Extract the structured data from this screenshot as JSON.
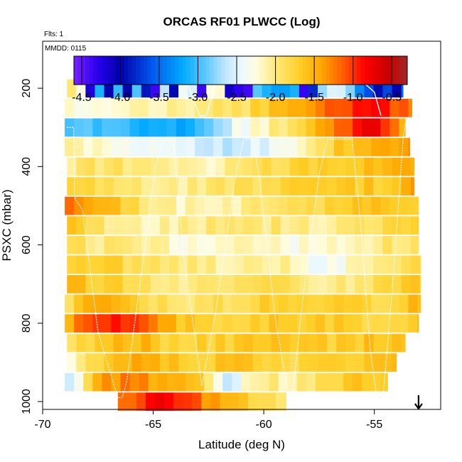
{
  "chart_data": {
    "type": "heatmap",
    "title": "ORCAS RF01 PLWCC (Log)",
    "note_flights": "Flts: 1",
    "note_date": "MMDD: 0115",
    "xlabel": "Latitude (deg N)",
    "ylabel": "PSXC (mbar)",
    "xlim": [
      -70,
      -52
    ],
    "ylim": [
      1020,
      80
    ],
    "x_ticks": [
      -70,
      -65,
      -60,
      -55
    ],
    "x_tick_labels": [
      "-70",
      "-65",
      "-60",
      "-55"
    ],
    "y_ticks": [
      200,
      400,
      600,
      800,
      1000
    ],
    "y_tick_labels": [
      "200",
      "400",
      "600",
      "800",
      "1000"
    ],
    "colorbar": {
      "range": [
        -4.6,
        -0.3
      ],
      "ticks": [
        -4.5,
        -4.0,
        -3.5,
        -3.0,
        -2.5,
        -2.0,
        -1.5,
        -1.0,
        -0.5
      ],
      "tick_labels": [
        "-4.5",
        "-4.0",
        "-3.5",
        "-3.0",
        "-2.5",
        "-2.0",
        "-1.5",
        "-1.0",
        "-0.5"
      ],
      "stops": [
        {
          "v": -4.6,
          "c": "#7b20ff"
        },
        {
          "v": -4.3,
          "c": "#2a00ee"
        },
        {
          "v": -4.0,
          "c": "#0000a8"
        },
        {
          "v": -3.6,
          "c": "#0055ee"
        },
        {
          "v": -3.2,
          "c": "#00aaff"
        },
        {
          "v": -2.9,
          "c": "#5cc8ff"
        },
        {
          "v": -2.65,
          "c": "#bfe6ff"
        },
        {
          "v": -2.45,
          "c": "#eaf8ff"
        },
        {
          "v": -2.25,
          "c": "#fffde0"
        },
        {
          "v": -2.0,
          "c": "#ffe97a"
        },
        {
          "v": -1.7,
          "c": "#ffd02a"
        },
        {
          "v": -1.4,
          "c": "#ffa500"
        },
        {
          "v": -1.1,
          "c": "#ff5500"
        },
        {
          "v": -0.85,
          "c": "#ff0000"
        },
        {
          "v": -0.55,
          "c": "#c80000"
        },
        {
          "v": -0.3,
          "c": "#a02828"
        }
      ]
    },
    "pressure_levels": [
      {
        "p": 200,
        "x": [
          -68.9,
          -53.7
        ],
        "v": [
          -2.0,
          -3.2,
          -3.0,
          -2.6,
          -2.3,
          -2.2,
          -3.3,
          -3.0,
          -2.4,
          -3.9,
          -3.6
        ]
      },
      {
        "p": 250,
        "x": [
          -69.0,
          -53.3
        ],
        "v": [
          -2.25,
          -2.3,
          -2.2,
          -2.1,
          -2.0,
          -1.9,
          -1.6,
          -1.3,
          -1.0,
          -0.9,
          -1.2
        ]
      },
      {
        "p": 300,
        "x": [
          -69.0,
          -53.6
        ],
        "v": [
          -2.9,
          -3.0,
          -3.1,
          -3.2,
          -3.0,
          -2.4,
          -2.1,
          -1.8,
          -1.2,
          -0.7,
          -1.4
        ]
      },
      {
        "p": 350,
        "x": [
          -69.0,
          -53.4
        ],
        "v": [
          -2.1,
          -2.2,
          -2.35,
          -2.5,
          -2.6,
          -2.6,
          -2.4,
          -2.0,
          -1.6,
          -1.5,
          -1.4
        ]
      },
      {
        "p": 400,
        "x": [
          -68.9,
          -53.2
        ],
        "v": [
          -2.0,
          -1.9,
          -2.0,
          -2.1,
          -2.2,
          -2.0,
          -1.8,
          -1.7,
          -1.6,
          -1.6,
          -1.5
        ]
      },
      {
        "p": 450,
        "x": [
          -68.9,
          -53.2
        ],
        "v": [
          -1.8,
          -1.9,
          -2.0,
          -2.1,
          -2.0,
          -1.9,
          -1.8,
          -1.7,
          -1.6,
          -1.7,
          -1.4
        ]
      },
      {
        "p": 500,
        "x": [
          -69.0,
          -53.0
        ],
        "v": [
          -1.2,
          -1.5,
          -1.9,
          -2.1,
          -2.2,
          -2.1,
          -1.9,
          -1.8,
          -1.7,
          -1.6,
          -1.7
        ]
      },
      {
        "p": 550,
        "x": [
          -68.9,
          -53.0
        ],
        "v": [
          -1.6,
          -2.0,
          -2.2,
          -2.1,
          -2.0,
          -1.9,
          -2.0,
          -2.1,
          -2.0,
          -1.9,
          -1.8
        ]
      },
      {
        "p": 600,
        "x": [
          -68.9,
          -53.0
        ],
        "v": [
          -1.9,
          -2.0,
          -2.1,
          -2.2,
          -2.2,
          -2.1,
          -2.2,
          -2.3,
          -2.1,
          -2.0,
          -1.9
        ]
      },
      {
        "p": 650,
        "x": [
          -68.9,
          -52.9
        ],
        "v": [
          -1.8,
          -1.7,
          -1.9,
          -2.0,
          -2.1,
          -2.1,
          -2.0,
          -2.4,
          -2.2,
          -2.1,
          -1.8
        ]
      },
      {
        "p": 700,
        "x": [
          -68.9,
          -52.9
        ],
        "v": [
          -1.6,
          -1.7,
          -1.9,
          -2.1,
          -2.0,
          -1.9,
          -1.8,
          -2.1,
          -2.0,
          -1.8,
          -1.7
        ]
      },
      {
        "p": 750,
        "x": [
          -69.0,
          -52.9
        ],
        "v": [
          -1.9,
          -1.3,
          -1.8,
          -2.0,
          -1.9,
          -1.8,
          -1.7,
          -1.8,
          -1.7,
          -1.8,
          -1.5
        ]
      },
      {
        "p": 800,
        "x": [
          -69.0,
          -53.0
        ],
        "v": [
          -1.4,
          -1.0,
          -0.9,
          -1.6,
          -1.8,
          -1.7,
          -1.6,
          -1.7,
          -1.7,
          -1.8,
          -1.6
        ]
      },
      {
        "p": 850,
        "x": [
          -68.9,
          -53.6
        ],
        "v": [
          -1.9,
          -1.6,
          -1.5,
          -1.8,
          -1.7,
          -1.7,
          -1.6,
          -1.7,
          -1.7,
          -1.6,
          -1.6
        ]
      },
      {
        "p": 900,
        "x": [
          -68.9,
          -54.0
        ],
        "v": [
          -2.2,
          -1.7,
          -1.4,
          -1.6,
          -1.7,
          -1.6,
          -1.7,
          -1.8,
          -1.7,
          -1.6,
          -1.5
        ]
      },
      {
        "p": 950,
        "x": [
          -69.0,
          -54.4
        ],
        "v": [
          -2.6,
          -1.4,
          -1.2,
          -1.5,
          -1.6,
          -2.7,
          -2.0,
          -2.1,
          -1.8,
          -1.7,
          -1.6
        ]
      },
      {
        "p": 1000,
        "x": [
          -66.6,
          -59.0
        ],
        "v": [
          -1.3,
          -1.0,
          -0.85,
          -0.9,
          -1.1,
          -1.3,
          -1.4,
          -1.6,
          -1.8,
          -1.9,
          -2.0
        ]
      }
    ],
    "flight_track": [
      [
        -68.9,
        300
      ],
      [
        -68.6,
        300
      ],
      [
        -68.55,
        480
      ],
      [
        -68.2,
        510
      ],
      [
        -67.5,
        820
      ],
      [
        -66.6,
        990
      ],
      [
        -66.4,
        990
      ],
      [
        -66.2,
        950
      ],
      [
        -65.6,
        700
      ],
      [
        -64.9,
        400
      ],
      [
        -64.5,
        330
      ],
      [
        -64.1,
        330
      ],
      [
        -63.6,
        640
      ],
      [
        -62.8,
        960
      ],
      [
        -62.2,
        780
      ],
      [
        -61.3,
        430
      ],
      [
        -60.9,
        330
      ],
      [
        -60.5,
        330
      ],
      [
        -60.2,
        430
      ],
      [
        -59.5,
        780
      ],
      [
        -58.9,
        980
      ],
      [
        -58.7,
        980
      ],
      [
        -58.2,
        720
      ],
      [
        -57.5,
        420
      ],
      [
        -57.1,
        330
      ],
      [
        -56.0,
        330
      ],
      [
        -55.6,
        560
      ],
      [
        -55.2,
        860
      ],
      [
        -54.9,
        985
      ],
      [
        -54.6,
        985
      ],
      [
        -54.2,
        720
      ],
      [
        -53.7,
        330
      ],
      [
        -53.6,
        290
      ]
    ],
    "flight_track_top": [
      [
        -68.6,
        180
      ],
      [
        -63.5,
        180
      ],
      [
        -62.9,
        270
      ],
      [
        -62.6,
        270
      ],
      [
        -62.2,
        190
      ],
      [
        -60.0,
        180
      ],
      [
        -55.6,
        180
      ],
      [
        -55.0,
        210
      ],
      [
        -54.7,
        270
      ]
    ],
    "arrow_latitude": -53.0
  }
}
